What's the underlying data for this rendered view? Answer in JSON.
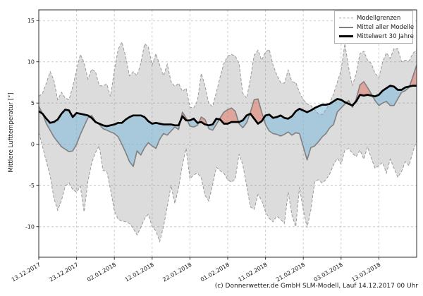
{
  "y_axis_label": "Mittlere Lufttemperatur [°]",
  "caption": "(c) Donnerwetter.de GmbH SLM-Modell, Lauf 14.12.2017 00 Uhr",
  "legend": {
    "position": "upper right",
    "items": [
      {
        "label": "Modellgrenzen",
        "style": "dashed-gray-line"
      },
      {
        "label": "Mittel aller Modelle",
        "style": "solid-gray-line"
      },
      {
        "label": "Mittelwert 30 Jahre",
        "style": "thick-black-line"
      }
    ]
  },
  "colors": {
    "band_fill": "rgba(130,130,130,0.28)",
    "band_edge": "#999999",
    "gridline": "#cccccc",
    "mean_line": "#808080",
    "mean30_line": "#000000",
    "fill_above": "rgba(228,110,88,0.50)",
    "fill_below": "rgba(125,185,220,0.55)",
    "frame": "#2b2b2b",
    "text": "#1a1a1a"
  },
  "chart_data": {
    "type": "line",
    "title": "",
    "xlabel": "",
    "ylabel": "Mittlere Lufttemperatur [°]",
    "x_unit": "days since 13.12.2017, daily samples",
    "x": [
      0,
      1,
      2,
      3,
      4,
      5,
      6,
      7,
      8,
      9,
      10,
      11,
      12,
      13,
      14,
      15,
      16,
      17,
      18,
      19,
      20,
      21,
      22,
      23,
      24,
      25,
      26,
      27,
      28,
      29,
      30,
      31,
      32,
      33,
      34,
      35,
      36,
      37,
      38,
      39,
      40,
      41,
      42,
      43,
      44,
      45,
      46,
      47,
      48,
      49,
      50,
      51,
      52,
      53,
      54,
      55,
      56,
      57,
      58,
      59,
      60,
      61,
      62,
      63,
      64,
      65,
      66,
      67,
      68,
      69,
      70,
      71,
      72,
      73,
      74,
      75,
      76,
      77,
      78,
      79,
      80,
      81,
      82,
      83,
      84,
      85,
      86,
      87,
      88,
      89,
      90,
      91,
      92,
      93,
      94,
      95,
      96,
      97,
      98,
      99,
      100
    ],
    "x_tick_days": [
      0,
      10,
      20,
      30,
      40,
      50,
      60,
      70,
      80,
      90
    ],
    "x_tick_labels": [
      "13.12.2017",
      "23.12.2017",
      "02.01.2018",
      "12.01.2018",
      "22.01.2018",
      "01.02.2018",
      "11.02.2018",
      "21.02.2018",
      "03.03.2018",
      "13.03.2018"
    ],
    "x_tick_rotation": -30,
    "y_ticks": [
      -10,
      -5,
      0,
      5,
      10,
      15
    ],
    "xlim": [
      0,
      100
    ],
    "ylim": [
      -13.7,
      16.3
    ],
    "grid": true,
    "legend_position": "upper right",
    "series": [
      {
        "name": "Modellgrenzen (obere Grenze)",
        "role": "model_max",
        "line": "dashed",
        "values": [
          5.8,
          6.2,
          7.4,
          8.8,
          7.8,
          5.4,
          6.3,
          5.6,
          5.4,
          7.0,
          9.0,
          10.9,
          9.9,
          7.9,
          9.1,
          8.8,
          7.1,
          7.1,
          7.3,
          5.8,
          9.0,
          11.5,
          12.4,
          10.6,
          8.3,
          8.8,
          8.3,
          9.8,
          12.2,
          11.8,
          9.6,
          11.0,
          9.6,
          8.3,
          9.7,
          7.6,
          7.0,
          7.4,
          6.4,
          6.8,
          4.5,
          4.4,
          5.3,
          8.6,
          7.1,
          4.9,
          4.6,
          6.3,
          8.2,
          9.8,
          10.7,
          10.9,
          10.7,
          9.8,
          6.2,
          5.6,
          7.9,
          10.8,
          11.4,
          10.2,
          11.2,
          11.5,
          9.6,
          8.4,
          7.5,
          7.4,
          9.0,
          7.6,
          7.5,
          6.3,
          5.4,
          4.9,
          4.7,
          4.2,
          3.7,
          3.6,
          4.2,
          5.0,
          6.1,
          7.5,
          9.0,
          12.2,
          9.3,
          7.1,
          8.6,
          11.0,
          11.3,
          10.2,
          9.8,
          8.6,
          8.1,
          10.0,
          11.1,
          10.4,
          11.6,
          11.6,
          10.0,
          10.2,
          10.1,
          11.0,
          11.5
        ]
      },
      {
        "name": "Modellgrenzen (untere Grenze)",
        "role": "model_min",
        "line": "dashed",
        "values": [
          1.4,
          -0.3,
          -2.1,
          -3.8,
          -6.5,
          -8.0,
          -6.8,
          -5.1,
          -4.7,
          -5.5,
          -5.8,
          -5.1,
          -8.2,
          -4.5,
          -2.3,
          -1.0,
          -0.2,
          -3.2,
          -3.3,
          -5.5,
          -8.1,
          -9.1,
          -9.3,
          -9.4,
          -9.6,
          -10.2,
          -11.0,
          -10.1,
          -9.0,
          -8.5,
          -10.0,
          -10.5,
          -11.8,
          -10.0,
          -7.6,
          -5.0,
          -7.2,
          -5.3,
          -2.5,
          -0.5,
          -4.2,
          -3.7,
          -3.5,
          -4.1,
          -6.2,
          -6.9,
          -4.9,
          -2.8,
          -3.2,
          -3.5,
          -4.3,
          -4.6,
          -4.2,
          -1.2,
          -2.5,
          -5.0,
          -7.6,
          -7.9,
          -6.1,
          -6.8,
          -8.2,
          -9.0,
          -9.4,
          -8.7,
          -9.1,
          -9.6,
          -5.8,
          -8.6,
          -10.0,
          -5.2,
          -8.0,
          -10.1,
          -8.0,
          -4.6,
          -4.3,
          -4.7,
          -4.3,
          -3.6,
          -2.5,
          -1.7,
          -2.4,
          -0.7,
          -0.5,
          -1.1,
          -1.5,
          -0.7,
          -1.8,
          -0.3,
          -1.7,
          -2.9,
          -2.6,
          -2.2,
          -3.5,
          -1.8,
          -2.9,
          -4.0,
          -3.3,
          -2.1,
          -2.6,
          -0.9,
          0.4
        ]
      },
      {
        "name": "Mittel aller Modelle",
        "role": "model_mean",
        "line": "solid-gray",
        "values": [
          4.6,
          3.7,
          2.5,
          1.7,
          0.9,
          0.3,
          -0.3,
          -0.6,
          -0.9,
          -0.8,
          0.0,
          1.2,
          2.2,
          3.2,
          3.5,
          2.8,
          2.4,
          1.9,
          1.7,
          1.5,
          1.3,
          0.9,
          0.0,
          -1.0,
          -2.1,
          -2.7,
          -0.8,
          -1.3,
          -0.4,
          0.2,
          -0.2,
          -0.5,
          0.6,
          1.3,
          1.1,
          1.6,
          2.1,
          1.8,
          3.9,
          3.2,
          2.2,
          2.1,
          2.3,
          3.3,
          3.0,
          1.9,
          1.7,
          2.4,
          3.2,
          3.9,
          4.2,
          4.4,
          4.0,
          2.5,
          2.0,
          2.6,
          3.9,
          5.4,
          5.5,
          3.9,
          2.4,
          1.6,
          1.3,
          1.2,
          1.0,
          1.2,
          1.5,
          1.1,
          1.4,
          1.3,
          -0.3,
          -1.9,
          -0.4,
          -0.2,
          0.3,
          0.9,
          1.3,
          2.0,
          2.4,
          3.9,
          4.4,
          4.9,
          5.3,
          4.5,
          5.5,
          7.2,
          7.6,
          6.9,
          6.1,
          5.3,
          4.7,
          5.0,
          5.2,
          4.7,
          4.7,
          5.5,
          6.3,
          6.5,
          6.9,
          8.2,
          9.6
        ]
      },
      {
        "name": "Mittelwert 30 Jahre",
        "role": "mean_30y",
        "line": "thick-black",
        "values": [
          4.0,
          3.7,
          3.1,
          2.6,
          2.7,
          3.0,
          3.7,
          4.2,
          4.1,
          3.3,
          3.8,
          3.7,
          3.6,
          3.5,
          3.2,
          2.7,
          2.5,
          2.3,
          2.2,
          2.3,
          2.4,
          2.6,
          2.6,
          3.0,
          3.3,
          3.5,
          3.5,
          3.5,
          3.3,
          2.8,
          2.5,
          2.6,
          2.5,
          2.4,
          2.4,
          2.4,
          2.3,
          2.3,
          3.4,
          2.9,
          2.9,
          3.1,
          2.6,
          2.7,
          2.4,
          2.3,
          2.4,
          3.1,
          3.0,
          2.5,
          2.5,
          2.7,
          2.7,
          2.7,
          2.9,
          3.5,
          3.7,
          3.1,
          2.5,
          2.8,
          3.5,
          3.6,
          3.2,
          3.3,
          3.5,
          3.2,
          3.1,
          3.4,
          4.0,
          4.3,
          4.1,
          3.9,
          4.1,
          4.4,
          4.6,
          4.8,
          4.8,
          4.9,
          5.2,
          5.5,
          5.4,
          5.1,
          4.9,
          4.7,
          5.2,
          6.0,
          5.9,
          6.0,
          5.9,
          5.8,
          6.0,
          6.5,
          6.8,
          7.1,
          7.0,
          6.6,
          6.6,
          6.9,
          7.0,
          7.1,
          7.1
        ]
      }
    ],
    "fills": [
      {
        "name": "Modellgrenzen-Band",
        "between": [
          "model_max",
          "model_min"
        ],
        "color": "light-gray"
      },
      {
        "name": "Modellmittel über 30-Jahre-Mittel",
        "between": [
          "model_mean",
          "mean_30y"
        ],
        "where": "mean>mean30",
        "color": "salmon-red"
      },
      {
        "name": "Modellmittel unter 30-Jahre-Mittel",
        "between": [
          "model_mean",
          "mean_30y"
        ],
        "where": "mean<mean30",
        "color": "light-blue"
      }
    ]
  }
}
